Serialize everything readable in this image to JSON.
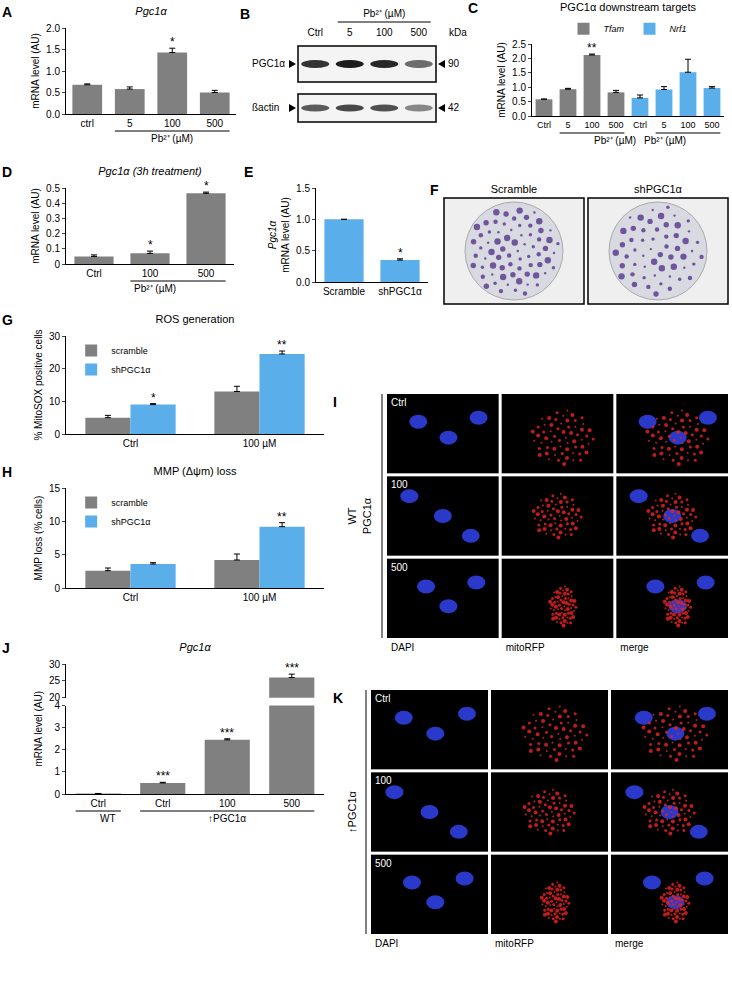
{
  "chart_data": [
    {
      "panel": "A",
      "type": "bar",
      "title": "Pgc1α",
      "y_label": "mRNA level (AU)",
      "categories": [
        "ctrl",
        "5",
        "100",
        "500"
      ],
      "values": [
        0.68,
        0.58,
        1.43,
        0.5
      ],
      "errors": [
        0.02,
        0.05,
        0.1,
        0.05
      ],
      "color": "#808080",
      "ylim": [
        0,
        2
      ],
      "yticks": [
        {
          "value": 0,
          "label": "0.0"
        },
        0.5,
        {
          "value": 1,
          "label": "1.0"
        },
        1.5,
        {
          "value": 2,
          "label": "2.0"
        }
      ],
      "grid": false,
      "annotations": [
        {
          "index": 2,
          "text": "*"
        }
      ],
      "groups": [
        {
          "label": "Pb²⁺ (µM)",
          "from": 1,
          "to": 3
        }
      ]
    },
    {
      "panel": "B",
      "type": "western_blot",
      "header": "Pb²⁺ (µM)",
      "lanes": [
        "Ctrl",
        "5",
        "100",
        "500"
      ],
      "unit": "kDa",
      "bands": [
        {
          "label": "PGC1α",
          "size": 90
        },
        {
          "label": "ßactin",
          "size": 42
        }
      ]
    },
    {
      "panel": "C",
      "type": "bar",
      "title": "PGC1α downstream targets",
      "y_label": "mRNA level (AU)",
      "categories": [
        "Ctrl",
        "5",
        "100",
        "500",
        "Ctrl",
        "5",
        "100",
        "500"
      ],
      "series": [
        {
          "name": "Tfam",
          "color": "#808080",
          "values": [
            0.58,
            0.93,
            2.12,
            0.82,
            null,
            null,
            null,
            null
          ],
          "errors": [
            0.01,
            0.03,
            0.03,
            0.07,
            null,
            null,
            null,
            null
          ]
        },
        {
          "name": "Nrf1",
          "color": "#5aaeea",
          "values": [
            null,
            null,
            null,
            null,
            0.63,
            0.92,
            1.52,
            0.97
          ],
          "errors": [
            null,
            null,
            null,
            null,
            0.1,
            0.1,
            0.45,
            0.05
          ]
        }
      ],
      "ylim": [
        0,
        2.5
      ],
      "yticks": [
        {
          "value": 0,
          "label": "0.0"
        },
        0.5,
        {
          "value": 1,
          "label": "1.0"
        },
        1.5,
        {
          "value": 2,
          "label": "2.0"
        },
        2.5
      ],
      "grid": false,
      "legend": "top",
      "annotations": [
        {
          "series": "Tfam",
          "index": 2,
          "text": "**"
        }
      ],
      "groups": [
        {
          "label": "Pb²⁺ (µM)",
          "from": 1,
          "to": 3
        },
        {
          "label": "Pb²⁺ (µM)",
          "from": 5,
          "to": 7
        }
      ]
    },
    {
      "panel": "D",
      "type": "bar",
      "title": "Pgc1α (3h treatment)",
      "y_label": "mRNA level (AU)",
      "categories": [
        "Ctrl",
        "100",
        "500"
      ],
      "values": [
        0.05,
        0.07,
        0.465
      ],
      "errors": [
        0.01,
        0.015,
        0.008
      ],
      "color": "#808080",
      "ylim": [
        0,
        0.5
      ],
      "yticks": [
        0,
        0.1,
        0.2,
        0.3,
        0.4,
        0.5
      ],
      "grid": false,
      "annotations": [
        {
          "index": 1,
          "text": "*"
        },
        {
          "index": 2,
          "text": "*"
        }
      ],
      "groups": [
        {
          "label": "Pb²⁺ (µM)",
          "from": 1,
          "to": 2
        }
      ]
    },
    {
      "panel": "E",
      "type": "bar",
      "y_label": [
        "Pgc1α",
        "mRNA level (AU)"
      ],
      "categories": [
        "Scramble",
        "shPGC1α"
      ],
      "values": [
        1.0,
        0.35
      ],
      "errors": [
        0,
        0.02
      ],
      "color": "#5aaeea",
      "ylim": [
        0,
        1.5
      ],
      "yticks": [
        {
          "value": 0,
          "label": "0.0"
        },
        0.5,
        {
          "value": 1,
          "label": "1.0"
        },
        1.5
      ],
      "grid": false,
      "annotations": [
        {
          "index": 1,
          "text": "*"
        }
      ]
    },
    {
      "panel": "F",
      "type": "colony_assay",
      "conditions": [
        "Scramble",
        "shPGC1α"
      ]
    },
    {
      "panel": "G",
      "type": "bar",
      "title": "ROS generation",
      "y_label": "% MitoSOX positive cells",
      "categories": [
        "Ctrl",
        "100 µM"
      ],
      "series": [
        {
          "name": "scramble",
          "color": "#808080",
          "values": [
            5,
            13
          ],
          "errors": [
            0.7,
            1.6
          ]
        },
        {
          "name": "shPGC1α",
          "color": "#5aaeea",
          "values": [
            9,
            24.5
          ],
          "errors": [
            0.3,
            0.9
          ]
        }
      ],
      "ylim": [
        0,
        30
      ],
      "yticks": [
        0,
        10,
        20,
        30
      ],
      "grid": false,
      "legend": "top-left",
      "annotations": [
        {
          "series": "shPGC1α",
          "index": 0,
          "text": "*"
        },
        {
          "series": "shPGC1α",
          "index": 1,
          "text": "**"
        }
      ]
    },
    {
      "panel": "H",
      "type": "bar",
      "title": "MMP (Δψm) loss",
      "y_label": "MMP loss (% cells)",
      "categories": [
        "Ctrl",
        "100 µM"
      ],
      "series": [
        {
          "name": "scramble",
          "color": "#808080",
          "values": [
            2.6,
            4.2
          ],
          "errors": [
            0.4,
            0.9
          ]
        },
        {
          "name": "shPGC1α",
          "color": "#5aaeea",
          "values": [
            3.6,
            9.2
          ],
          "errors": [
            0.2,
            0.6
          ]
        }
      ],
      "ylim": [
        0,
        15
      ],
      "yticks": [
        0,
        5,
        10,
        15
      ],
      "grid": false,
      "legend": "top-left",
      "annotations": [
        {
          "series": "shPGC1α",
          "index": 1,
          "text": "**"
        }
      ]
    },
    {
      "panel": "I",
      "type": "microscopy",
      "group_label": [
        "WT",
        "PGC1α"
      ],
      "rows": [
        "Ctrl",
        "100",
        "500"
      ],
      "columns": [
        "DAPI",
        "mitoRFP",
        "merge"
      ]
    },
    {
      "panel": "J",
      "type": "bar",
      "title": "Pgc1α",
      "y_label": "mRNA level (AU)",
      "categories": [
        "Ctrl",
        "Ctrl",
        "100",
        "500"
      ],
      "values": [
        0.02,
        0.5,
        2.45,
        26
      ],
      "errors": [
        0.005,
        0.03,
        0.05,
        1
      ],
      "color": "#808080",
      "segments": [
        {
          "ylim": [
            0,
            4
          ],
          "yticks": [
            0,
            1,
            2,
            3,
            4
          ]
        },
        {
          "ylim": [
            20,
            30
          ],
          "yticks": [
            20,
            25,
            30
          ]
        }
      ],
      "grid": false,
      "annotations": [
        {
          "index": 1,
          "text": "***"
        },
        {
          "index": 2,
          "text": "***"
        },
        {
          "index": 3,
          "text": "***"
        }
      ],
      "groups": [
        {
          "label": "WT",
          "from": 0,
          "to": 0
        },
        {
          "label": "↑PGC1α",
          "from": 1,
          "to": 3
        }
      ]
    },
    {
      "panel": "K",
      "type": "microscopy",
      "group_label": [
        "↑PGC1α"
      ],
      "rows": [
        "Ctrl",
        "100",
        "500"
      ],
      "columns": [
        "DAPI",
        "mitoRFP",
        "merge"
      ]
    }
  ]
}
